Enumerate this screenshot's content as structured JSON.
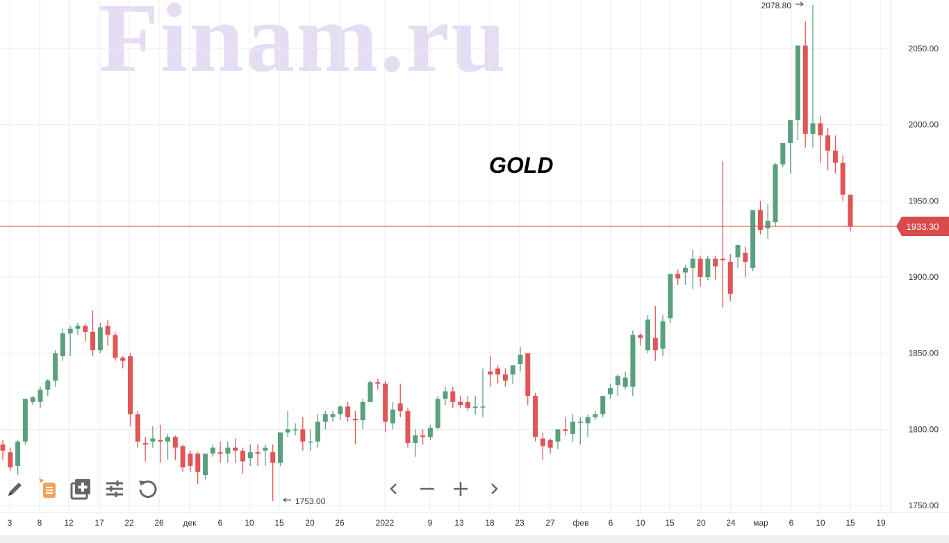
{
  "watermark": "Finam.ru",
  "title": "GOLD",
  "colors": {
    "up": "#5a9f7e",
    "down": "#e05555",
    "price_line": "#d94a4a",
    "grid": "#ebebeb",
    "axis_text": "#333333"
  },
  "current_price_label": "1933.30",
  "high_label": "2078.80",
  "low_label": "1753.00",
  "toolbar": [
    "pencil-icon",
    "notes-icon",
    "add-indicator-icon",
    "settings-sliders-icon",
    "reset-icon"
  ],
  "nav": [
    "chevron-left-icon",
    "zoom-out-icon",
    "zoom-in-icon",
    "chevron-right-icon"
  ],
  "chart_data": {
    "type": "candlestick",
    "title": "GOLD",
    "y_ticks": [
      "2050.00",
      "2000.00",
      "1950.00",
      "1900.00",
      "1850.00",
      "1800.00",
      "1750.00"
    ],
    "ylim": [
      1745,
      2080
    ],
    "x_ticks": [
      "3",
      "8",
      "12",
      "17",
      "22",
      "26",
      "дек",
      "6",
      "10",
      "15",
      "20",
      "26",
      "2022",
      "9",
      "13",
      "18",
      "23",
      "27",
      "фев",
      "6",
      "10",
      "15",
      "20",
      "24",
      "мар",
      "6",
      "10",
      "15",
      "19"
    ],
    "current_price": 1933.3,
    "candles": [
      [
        1790,
        1793,
        1786,
        1780
      ],
      [
        1785,
        1788,
        1775,
        1773
      ],
      [
        1776,
        1793,
        1792,
        1770
      ],
      [
        1792,
        1820,
        1820,
        1790
      ],
      [
        1818,
        1822,
        1821,
        1816
      ],
      [
        1818,
        1828,
        1826,
        1814
      ],
      [
        1826,
        1833,
        1832,
        1822
      ],
      [
        1832,
        1852,
        1850,
        1828
      ],
      [
        1848,
        1866,
        1863,
        1845
      ],
      [
        1863,
        1868,
        1866,
        1848
      ],
      [
        1866,
        1870,
        1868,
        1862
      ],
      [
        1868,
        1869,
        1864,
        1858
      ],
      [
        1864,
        1878,
        1852,
        1848
      ],
      [
        1852,
        1870,
        1867,
        1850
      ],
      [
        1868,
        1872,
        1862,
        1855
      ],
      [
        1862,
        1864,
        1847,
        1845
      ],
      [
        1847,
        1848,
        1845,
        1840
      ],
      [
        1848,
        1850,
        1810,
        1802
      ],
      [
        1810,
        1812,
        1792,
        1788
      ],
      [
        1791,
        1795,
        1790,
        1779
      ],
      [
        1792,
        1802,
        1794,
        1788
      ],
      [
        1793,
        1803,
        1792,
        1778
      ],
      [
        1792,
        1797,
        1795,
        1780
      ],
      [
        1795,
        1796,
        1788,
        1780
      ],
      [
        1789,
        1790,
        1775,
        1772
      ],
      [
        1784,
        1786,
        1776,
        1772
      ],
      [
        1784,
        1785,
        1772,
        1764
      ],
      [
        1770,
        1784,
        1784,
        1767
      ],
      [
        1784,
        1790,
        1788,
        1782
      ],
      [
        1785,
        1792,
        1784,
        1778
      ],
      [
        1784,
        1792,
        1788,
        1778
      ],
      [
        1788,
        1794,
        1786,
        1778
      ],
      [
        1786,
        1788,
        1779,
        1771
      ],
      [
        1781,
        1790,
        1785,
        1776
      ],
      [
        1785,
        1790,
        1784,
        1776
      ],
      [
        1786,
        1790,
        1788,
        1776
      ],
      [
        1785,
        1790,
        1778,
        1753
      ],
      [
        1778,
        1798,
        1798,
        1776
      ],
      [
        1798,
        1812,
        1800,
        1795
      ],
      [
        1800,
        1804,
        1800,
        1796
      ],
      [
        1800,
        1808,
        1792,
        1786
      ],
      [
        1792,
        1800,
        1792,
        1786
      ],
      [
        1792,
        1810,
        1805,
        1788
      ],
      [
        1805,
        1812,
        1810,
        1800
      ],
      [
        1808,
        1812,
        1810,
        1805
      ],
      [
        1810,
        1816,
        1815,
        1806
      ],
      [
        1815,
        1818,
        1808,
        1805
      ],
      [
        1807,
        1812,
        1806,
        1790
      ],
      [
        1806,
        1820,
        1818,
        1800
      ],
      [
        1818,
        1832,
        1831,
        1818
      ],
      [
        1831,
        1833,
        1830,
        1826
      ],
      [
        1830,
        1832,
        1805,
        1798
      ],
      [
        1804,
        1818,
        1813,
        1800
      ],
      [
        1817,
        1830,
        1812,
        1808
      ],
      [
        1812,
        1814,
        1791,
        1788
      ],
      [
        1791,
        1800,
        1796,
        1782
      ],
      [
        1796,
        1800,
        1795,
        1790
      ],
      [
        1795,
        1803,
        1801,
        1793
      ],
      [
        1801,
        1822,
        1820,
        1800
      ],
      [
        1820,
        1828,
        1825,
        1816
      ],
      [
        1825,
        1828,
        1818,
        1814
      ],
      [
        1818,
        1822,
        1816,
        1814
      ],
      [
        1818,
        1822,
        1814,
        1812
      ],
      [
        1814,
        1822,
        1815,
        1810
      ],
      [
        1815,
        1840,
        1815,
        1808
      ],
      [
        1838,
        1848,
        1836,
        1828
      ],
      [
        1840,
        1842,
        1836,
        1830
      ],
      [
        1836,
        1840,
        1832,
        1828
      ],
      [
        1836,
        1842,
        1842,
        1830
      ],
      [
        1843,
        1854,
        1849,
        1838
      ],
      [
        1850,
        1850,
        1822,
        1816
      ],
      [
        1822,
        1824,
        1795,
        1792
      ],
      [
        1794,
        1798,
        1789,
        1780
      ],
      [
        1793,
        1794,
        1788,
        1784
      ],
      [
        1792,
        1800,
        1800,
        1787
      ],
      [
        1800,
        1808,
        1799,
        1796
      ],
      [
        1797,
        1810,
        1805,
        1792
      ],
      [
        1805,
        1808,
        1805,
        1790
      ],
      [
        1804,
        1810,
        1808,
        1795
      ],
      [
        1808,
        1812,
        1810,
        1806
      ],
      [
        1810,
        1822,
        1822,
        1808
      ],
      [
        1823,
        1830,
        1827,
        1820
      ],
      [
        1829,
        1836,
        1835,
        1822
      ],
      [
        1828,
        1838,
        1834,
        1826
      ],
      [
        1828,
        1865,
        1862,
        1822
      ],
      [
        1862,
        1863,
        1860,
        1855
      ],
      [
        1852,
        1875,
        1872,
        1850
      ],
      [
        1860,
        1881,
        1852,
        1845
      ],
      [
        1853,
        1875,
        1871,
        1848
      ],
      [
        1873,
        1902,
        1902,
        1870
      ],
      [
        1902,
        1905,
        1899,
        1895
      ],
      [
        1903,
        1908,
        1906,
        1895
      ],
      [
        1906,
        1918,
        1912,
        1892
      ],
      [
        1912,
        1914,
        1900,
        1894
      ],
      [
        1900,
        1914,
        1912,
        1898
      ],
      [
        1912,
        1914,
        1907,
        1898
      ],
      [
        1912,
        1976,
        1911,
        1880
      ],
      [
        1910,
        1915,
        1889,
        1884
      ],
      [
        1913,
        1920,
        1921,
        1906
      ],
      [
        1916,
        1920,
        1910,
        1900
      ],
      [
        1906,
        1915,
        1944,
        1904
      ],
      [
        1944,
        1950,
        1931,
        1928
      ],
      [
        1932,
        1948,
        1937,
        1925
      ],
      [
        1936,
        1975,
        1974,
        1933
      ],
      [
        1974,
        1980,
        1988,
        1972
      ],
      [
        1988,
        1992,
        2003,
        1968
      ],
      [
        2003,
        2010,
        2052,
        1990
      ],
      [
        2052,
        2068,
        1994,
        1985
      ],
      [
        1994,
        2001,
        2001,
        1985
      ],
      [
        2001,
        2006,
        1993,
        1975
      ],
      [
        1993,
        1998,
        1983,
        1970
      ],
      [
        1983,
        1993,
        1975,
        1968
      ],
      [
        1975,
        1980,
        1954,
        1950
      ],
      [
        1954,
        1954,
        1933,
        1930
      ]
    ],
    "candle_high_fix": [
      [
        108,
        2078.8
      ]
    ]
  }
}
